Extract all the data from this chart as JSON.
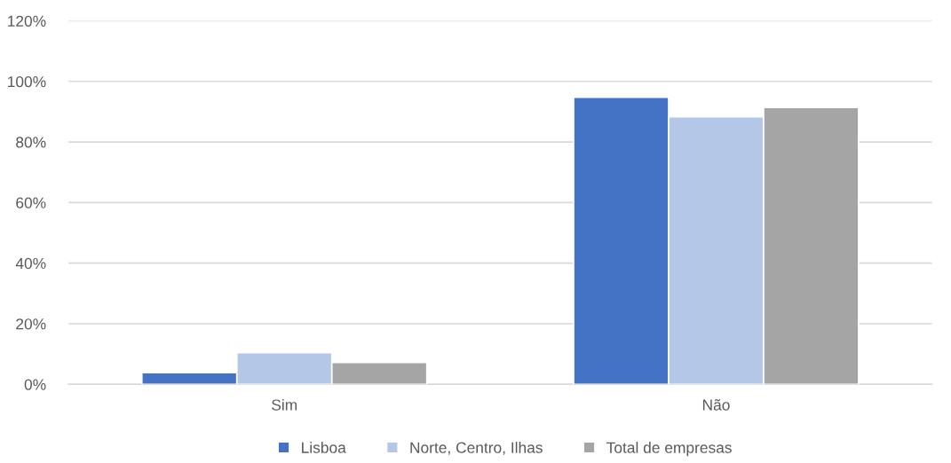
{
  "chart_data": {
    "type": "bar",
    "categories": [
      "Sim",
      "Não"
    ],
    "series": [
      {
        "name": "Lisboa",
        "color": "#4472c4",
        "values": [
          3.8,
          94.8
        ]
      },
      {
        "name": "Norte, Centro, Ilhas",
        "color": "#b4c7e7",
        "values": [
          10.4,
          88.3
        ]
      },
      {
        "name": "Total de empresas",
        "color": "#a5a5a5",
        "values": [
          7.2,
          91.4
        ]
      }
    ],
    "ylim": [
      0,
      120
    ],
    "yticks": [
      {
        "value": 0,
        "label": "0%"
      },
      {
        "value": 20,
        "label": "20%"
      },
      {
        "value": 40,
        "label": "40%"
      },
      {
        "value": 60,
        "label": "60%"
      },
      {
        "value": 80,
        "label": "80%"
      },
      {
        "value": 100,
        "label": "100%"
      },
      {
        "value": 120,
        "label": "120%"
      }
    ],
    "grid": "y",
    "legend": "bottom"
  }
}
